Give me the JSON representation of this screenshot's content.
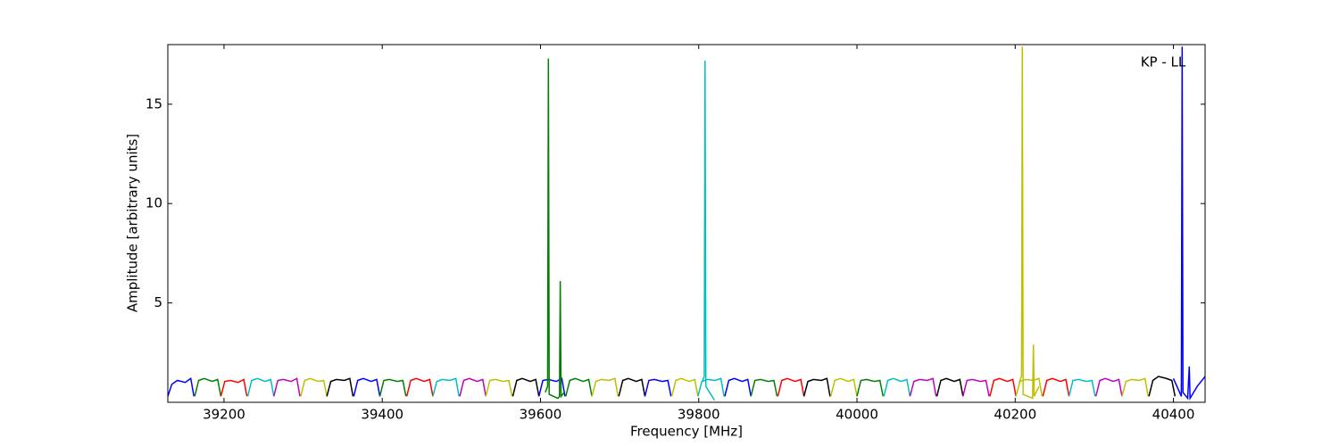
{
  "chart_data": {
    "type": "line",
    "annotation": "KP - LL",
    "xlabel": "Frequency [MHz]",
    "ylabel": "Amplitude [arbitrary units]",
    "xlim": [
      39129,
      40440
    ],
    "ylim": [
      0,
      18
    ],
    "xticks": [
      39200,
      39400,
      39600,
      39800,
      40000,
      40200,
      40400
    ],
    "yticks": [
      5,
      10,
      15
    ],
    "series": [
      {
        "color": "#0000ff",
        "x": [
          39129,
          39134,
          39141,
          39151,
          39158,
          39162
        ],
        "values": [
          0.3,
          0.9,
          1.1,
          1.0,
          1.2,
          0.3
        ]
      },
      {
        "color": "#008000",
        "x": [
          39163,
          39168,
          39175,
          39185,
          39192,
          39196
        ],
        "values": [
          0.3,
          1.1,
          1.2,
          1.05,
          1.15,
          0.3
        ]
      },
      {
        "color": "#ff0000",
        "x": [
          39196,
          39201,
          39208,
          39218,
          39225,
          39229
        ],
        "values": [
          0.3,
          1.05,
          1.1,
          1.0,
          1.15,
          0.3
        ]
      },
      {
        "color": "#00bfbf",
        "x": [
          39230,
          39235,
          39242,
          39252,
          39259,
          39263
        ],
        "values": [
          0.3,
          1.1,
          1.2,
          1.05,
          1.15,
          0.3
        ]
      },
      {
        "color": "#bf00bf",
        "x": [
          39263,
          39268,
          39275,
          39285,
          39292,
          39296
        ],
        "values": [
          0.3,
          1.1,
          1.15,
          1.05,
          1.2,
          0.3
        ]
      },
      {
        "color": "#bfbf00",
        "x": [
          39297,
          39302,
          39309,
          39319,
          39326,
          39330
        ],
        "values": [
          0.3,
          1.1,
          1.2,
          1.05,
          1.1,
          0.3
        ]
      },
      {
        "color": "#000000",
        "x": [
          39330,
          39335,
          39342,
          39352,
          39359,
          39363
        ],
        "values": [
          0.3,
          1.05,
          1.15,
          1.1,
          1.2,
          0.3
        ]
      },
      {
        "color": "#0000ff",
        "x": [
          39364,
          39369,
          39376,
          39386,
          39393,
          39397
        ],
        "values": [
          0.3,
          1.1,
          1.2,
          1.05,
          1.15,
          0.3
        ]
      },
      {
        "color": "#008000",
        "x": [
          39397,
          39402,
          39409,
          39419,
          39426,
          39430
        ],
        "values": [
          0.3,
          1.1,
          1.15,
          1.05,
          1.1,
          0.3
        ]
      },
      {
        "color": "#ff0000",
        "x": [
          39431,
          39436,
          39443,
          39453,
          39460,
          39464
        ],
        "values": [
          0.3,
          1.1,
          1.2,
          1.05,
          1.15,
          0.3
        ]
      },
      {
        "color": "#00bfbf",
        "x": [
          39464,
          39469,
          39476,
          39486,
          39493,
          39497
        ],
        "values": [
          0.3,
          1.05,
          1.15,
          1.1,
          1.2,
          0.3
        ]
      },
      {
        "color": "#bf00bf",
        "x": [
          39498,
          39503,
          39510,
          39520,
          39527,
          39531
        ],
        "values": [
          0.3,
          1.1,
          1.2,
          1.05,
          1.15,
          0.3
        ]
      },
      {
        "color": "#bfbf00",
        "x": [
          39531,
          39536,
          39543,
          39553,
          39560,
          39564
        ],
        "values": [
          0.3,
          1.1,
          1.15,
          1.05,
          1.1,
          0.3
        ]
      },
      {
        "color": "#000000",
        "x": [
          39565,
          39570,
          39577,
          39587,
          39594,
          39598
        ],
        "values": [
          0.3,
          1.1,
          1.2,
          1.05,
          1.15,
          0.3
        ]
      },
      {
        "color": "#0000ff",
        "x": [
          39598,
          39603,
          39610,
          39620,
          39627,
          39631
        ],
        "values": [
          0.3,
          1.1,
          1.15,
          1.05,
          1.2,
          0.3
        ]
      },
      {
        "color": "#008000",
        "x": [
          39632,
          39637,
          39644,
          39654,
          39661,
          39665
        ],
        "values": [
          0.3,
          1.1,
          1.2,
          1.05,
          1.15,
          0.3
        ]
      },
      {
        "color": "#bfbf00",
        "x": [
          39665,
          39670,
          39677,
          39687,
          39694,
          39698
        ],
        "values": [
          0.3,
          1.05,
          1.15,
          1.1,
          1.2,
          0.3
        ]
      },
      {
        "color": "#000000",
        "x": [
          39699,
          39704,
          39711,
          39721,
          39728,
          39732
        ],
        "values": [
          0.3,
          1.1,
          1.2,
          1.05,
          1.15,
          0.3
        ]
      },
      {
        "color": "#0000ff",
        "x": [
          39732,
          39737,
          39744,
          39754,
          39761,
          39765
        ],
        "values": [
          0.3,
          1.1,
          1.15,
          1.05,
          1.1,
          0.3
        ]
      },
      {
        "color": "#bfbf00",
        "x": [
          39766,
          39771,
          39778,
          39788,
          39795,
          39799
        ],
        "values": [
          0.3,
          1.1,
          1.2,
          1.05,
          1.15,
          0.3
        ]
      },
      {
        "color": "#00bfbf",
        "x": [
          39799,
          39804,
          39811,
          39821,
          39828,
          39832
        ],
        "values": [
          0.3,
          1.05,
          1.15,
          1.1,
          1.2,
          0.3
        ]
      },
      {
        "color": "#0000ff",
        "x": [
          39833,
          39838,
          39845,
          39855,
          39862,
          39866
        ],
        "values": [
          0.3,
          1.1,
          1.2,
          1.05,
          1.15,
          0.3
        ]
      },
      {
        "color": "#008000",
        "x": [
          39866,
          39871,
          39878,
          39888,
          39895,
          39899
        ],
        "values": [
          0.3,
          1.1,
          1.15,
          1.05,
          1.1,
          0.3
        ]
      },
      {
        "color": "#ff0000",
        "x": [
          39900,
          39905,
          39912,
          39922,
          39929,
          39933
        ],
        "values": [
          0.3,
          1.1,
          1.2,
          1.05,
          1.15,
          0.3
        ]
      },
      {
        "color": "#000000",
        "x": [
          39933,
          39938,
          39945,
          39955,
          39962,
          39966
        ],
        "values": [
          0.3,
          1.05,
          1.15,
          1.1,
          1.2,
          0.3
        ]
      },
      {
        "color": "#bfbf00",
        "x": [
          39967,
          39972,
          39979,
          39989,
          39996,
          40000
        ],
        "values": [
          0.3,
          1.1,
          1.2,
          1.05,
          1.15,
          0.3
        ]
      },
      {
        "color": "#008000",
        "x": [
          40000,
          40005,
          40012,
          40022,
          40029,
          40033
        ],
        "values": [
          0.3,
          1.1,
          1.15,
          1.05,
          1.1,
          0.3
        ]
      },
      {
        "color": "#00bfbf",
        "x": [
          40034,
          40039,
          40046,
          40056,
          40063,
          40067
        ],
        "values": [
          0.3,
          1.1,
          1.2,
          1.05,
          1.15,
          0.3
        ]
      },
      {
        "color": "#bf00bf",
        "x": [
          40067,
          40072,
          40079,
          40089,
          40096,
          40100
        ],
        "values": [
          0.3,
          1.05,
          1.15,
          1.1,
          1.2,
          0.3
        ]
      },
      {
        "color": "#000000",
        "x": [
          40101,
          40106,
          40113,
          40123,
          40130,
          40134
        ],
        "values": [
          0.3,
          1.1,
          1.2,
          1.05,
          1.15,
          0.3
        ]
      },
      {
        "color": "#bf00bf",
        "x": [
          40134,
          40139,
          40146,
          40156,
          40163,
          40167
        ],
        "values": [
          0.3,
          1.1,
          1.15,
          1.05,
          1.1,
          0.3
        ]
      },
      {
        "color": "#ff0000",
        "x": [
          40168,
          40173,
          40180,
          40190,
          40197,
          40201
        ],
        "values": [
          0.3,
          1.1,
          1.2,
          1.05,
          1.15,
          0.3
        ]
      },
      {
        "color": "#bfbf00",
        "x": [
          40201,
          40206,
          40213,
          40223,
          40230,
          40234
        ],
        "values": [
          0.3,
          1.05,
          1.15,
          1.1,
          1.2,
          0.3
        ]
      },
      {
        "color": "#ff0000",
        "x": [
          40235,
          40240,
          40247,
          40257,
          40264,
          40268
        ],
        "values": [
          0.3,
          1.1,
          1.2,
          1.05,
          1.15,
          0.3
        ]
      },
      {
        "color": "#00bfbf",
        "x": [
          40268,
          40273,
          40280,
          40290,
          40297,
          40301
        ],
        "values": [
          0.3,
          1.1,
          1.15,
          1.05,
          1.1,
          0.3
        ]
      },
      {
        "color": "#bf00bf",
        "x": [
          40302,
          40307,
          40314,
          40324,
          40331,
          40335
        ],
        "values": [
          0.3,
          1.1,
          1.2,
          1.05,
          1.15,
          0.3
        ]
      },
      {
        "color": "#bfbf00",
        "x": [
          40335,
          40340,
          40347,
          40357,
          40364,
          40368
        ],
        "values": [
          0.3,
          1.05,
          1.15,
          1.1,
          1.2,
          0.3
        ]
      },
      {
        "color": "#000000",
        "x": [
          40369,
          40374,
          40381,
          40391,
          40398,
          40402
        ],
        "values": [
          0.3,
          1.1,
          1.3,
          1.2,
          1.1,
          0.3
        ]
      },
      {
        "color": "#008000",
        "x": [
          39606,
          39609,
          39610,
          39611,
          39622,
          39624,
          39625,
          39626,
          39630
        ],
        "values": [
          0.5,
          0.8,
          17.3,
          0.4,
          0.2,
          0.3,
          6.1,
          0.3,
          0.5
        ]
      },
      {
        "color": "#00bfbf",
        "x": [
          39805,
          39807,
          39808,
          39809,
          39820
        ],
        "values": [
          1.1,
          1.3,
          17.2,
          0.8,
          0.1
        ]
      },
      {
        "color": "#bfbf00",
        "x": [
          40205,
          40208,
          40209,
          40210,
          40222,
          40223,
          40224,
          40230
        ],
        "values": [
          1.0,
          1.3,
          17.9,
          0.4,
          0.2,
          2.9,
          0.3,
          0.8
        ]
      },
      {
        "color": "#0000ff",
        "x": [
          40400,
          40410,
          40411,
          40412,
          40418,
          40420,
          40421,
          40430,
          40440
        ],
        "values": [
          1.2,
          0.3,
          17.9,
          0.5,
          0.2,
          1.8,
          0.2,
          0.8,
          1.3
        ]
      }
    ]
  }
}
